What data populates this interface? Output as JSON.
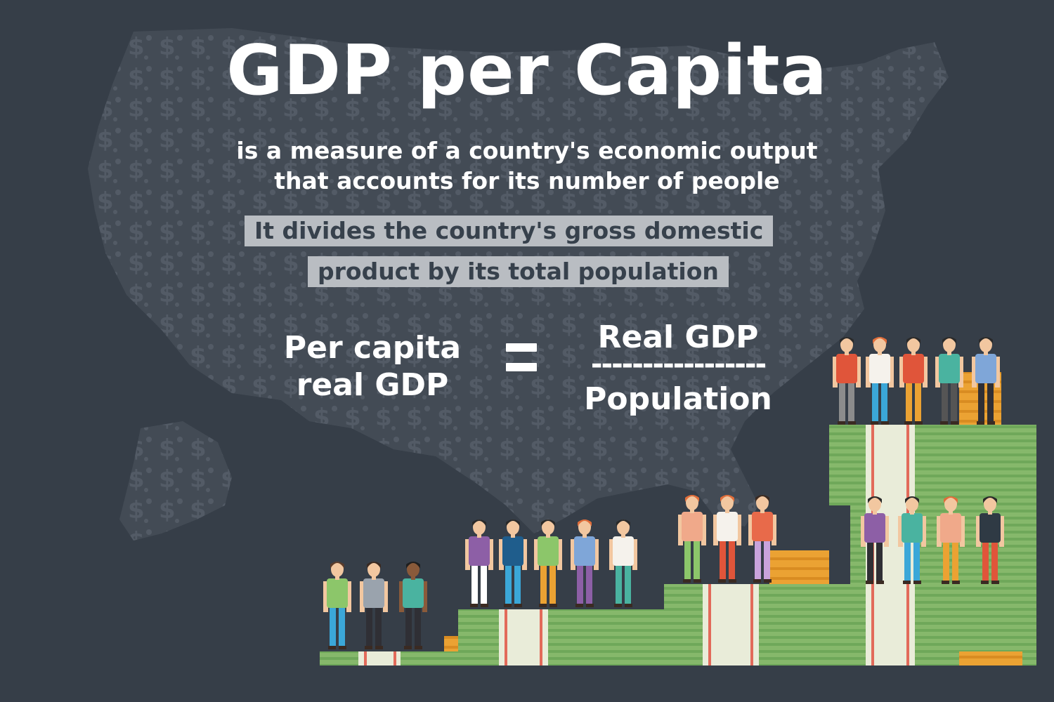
{
  "title": "GDP per Capita",
  "subtitle": {
    "line1": "is a measure of a country's economic output",
    "line2": "that accounts for its number of people"
  },
  "highlight": {
    "line1": "It divides the country's gross domestic",
    "line2": "product by its total population"
  },
  "formula": {
    "lhs_line1": "Per capita",
    "lhs_line2": "real GDP",
    "numerator": "Real GDP",
    "fraction_bar": "-----------------",
    "denominator": "Population"
  },
  "background_icon": "dollar-sign",
  "colors": {
    "background": "#363e48",
    "map": "#4d5560",
    "highlight_bg": "#b9bdc2",
    "money_green": "#86b86b",
    "money_dark": "#5e9a4d",
    "gold": "#eba233"
  }
}
